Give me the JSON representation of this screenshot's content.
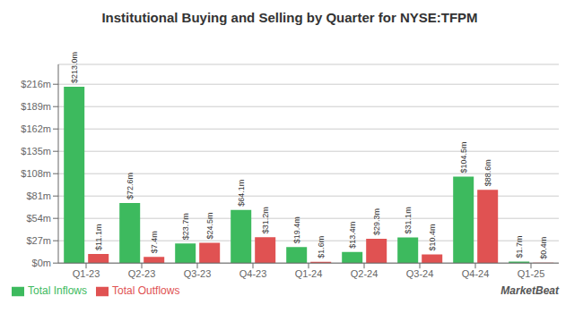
{
  "chart_data": {
    "type": "bar",
    "title": "Institutional Buying and Selling by Quarter for NYSE:TFPM",
    "categories": [
      "Q1-23",
      "Q2-23",
      "Q3-23",
      "Q4-23",
      "Q1-24",
      "Q2-24",
      "Q3-24",
      "Q4-24",
      "Q1-25"
    ],
    "series": [
      {
        "name": "Total Inflows",
        "color": "#3dba5e",
        "values": [
          213.0,
          72.6,
          23.7,
          64.1,
          19.4,
          13.4,
          31.1,
          104.5,
          1.7
        ],
        "value_labels": [
          "$213.0m",
          "$72.6m",
          "$23.7m",
          "$64.1m",
          "$19.4m",
          "$13.4m",
          "$31.1m",
          "$104.5m",
          "$1.7m"
        ]
      },
      {
        "name": "Total Outflows",
        "color": "#e05252",
        "values": [
          11.1,
          7.4,
          24.5,
          31.2,
          1.6,
          29.3,
          10.4,
          88.6,
          0.4
        ],
        "value_labels": [
          "$11.1m",
          "$7.4m",
          "$24.5m",
          "$31.2m",
          "$1.6m",
          "$29.3m",
          "$10.4m",
          "$88.6m",
          "$0.4m"
        ]
      }
    ],
    "ylim": [
      0,
      240
    ],
    "yticks": [
      {
        "value": 0,
        "label": "$0m"
      },
      {
        "value": 27,
        "label": "$27m"
      },
      {
        "value": 54,
        "label": "$54m"
      },
      {
        "value": 81,
        "label": "$81m"
      },
      {
        "value": 108,
        "label": "$108m"
      },
      {
        "value": 135,
        "label": "$135m"
      },
      {
        "value": 162,
        "label": "$162m"
      },
      {
        "value": 189,
        "label": "$189m"
      },
      {
        "value": 216,
        "label": "$216m"
      }
    ],
    "grid": true,
    "data_labels": true,
    "legend": "lower left",
    "annotations": [
      "MarketBeat"
    ]
  }
}
